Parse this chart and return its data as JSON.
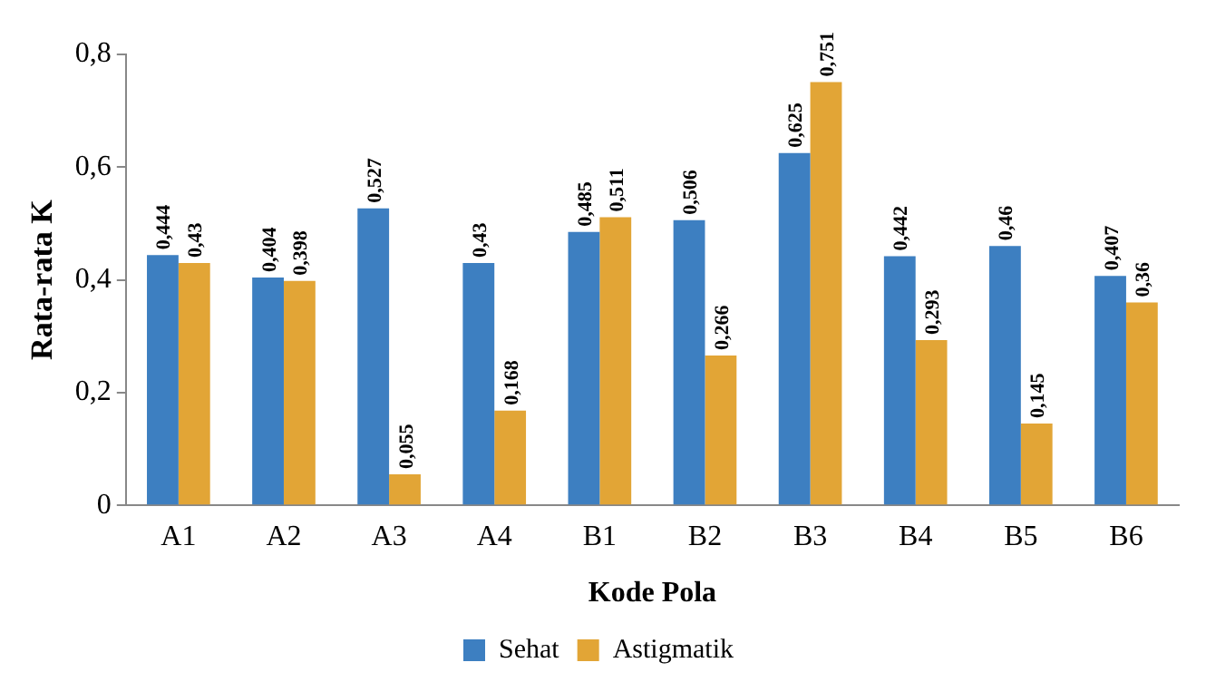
{
  "chart_data": {
    "type": "bar",
    "xlabel": "Kode Pola",
    "ylabel": "Rata-rata K",
    "categories": [
      "A1",
      "A2",
      "A3",
      "A4",
      "B1",
      "B2",
      "B3",
      "B4",
      "B5",
      "B6"
    ],
    "series": [
      {
        "name": "Sehat",
        "color": "#3d7fc1",
        "values": [
          0.444,
          0.404,
          0.527,
          0.43,
          0.485,
          0.506,
          0.625,
          0.442,
          0.46,
          0.407
        ],
        "value_labels": [
          "0,444",
          "0,404",
          "0,527",
          "0,43",
          "0,485",
          "0,506",
          "0,625",
          "0,442",
          "0,46",
          "0,407"
        ]
      },
      {
        "name": "Astigmatik",
        "color": "#e2a536",
        "values": [
          0.43,
          0.398,
          0.055,
          0.168,
          0.511,
          0.266,
          0.751,
          0.293,
          0.145,
          0.36
        ],
        "value_labels": [
          "0,43",
          "0,398",
          "0,055",
          "0,168",
          "0,511",
          "0,266",
          "0,751",
          "0,293",
          "0,145",
          "0,36"
        ]
      }
    ],
    "ylim": [
      0,
      0.8
    ],
    "yticks": [
      {
        "value": 0,
        "label": "0"
      },
      {
        "value": 0.2,
        "label": "0,2"
      },
      {
        "value": 0.4,
        "label": "0,4"
      },
      {
        "value": 0.6,
        "label": "0,6"
      },
      {
        "value": 0.8,
        "label": "0,8"
      }
    ],
    "grid": false,
    "legend": "bottom"
  }
}
